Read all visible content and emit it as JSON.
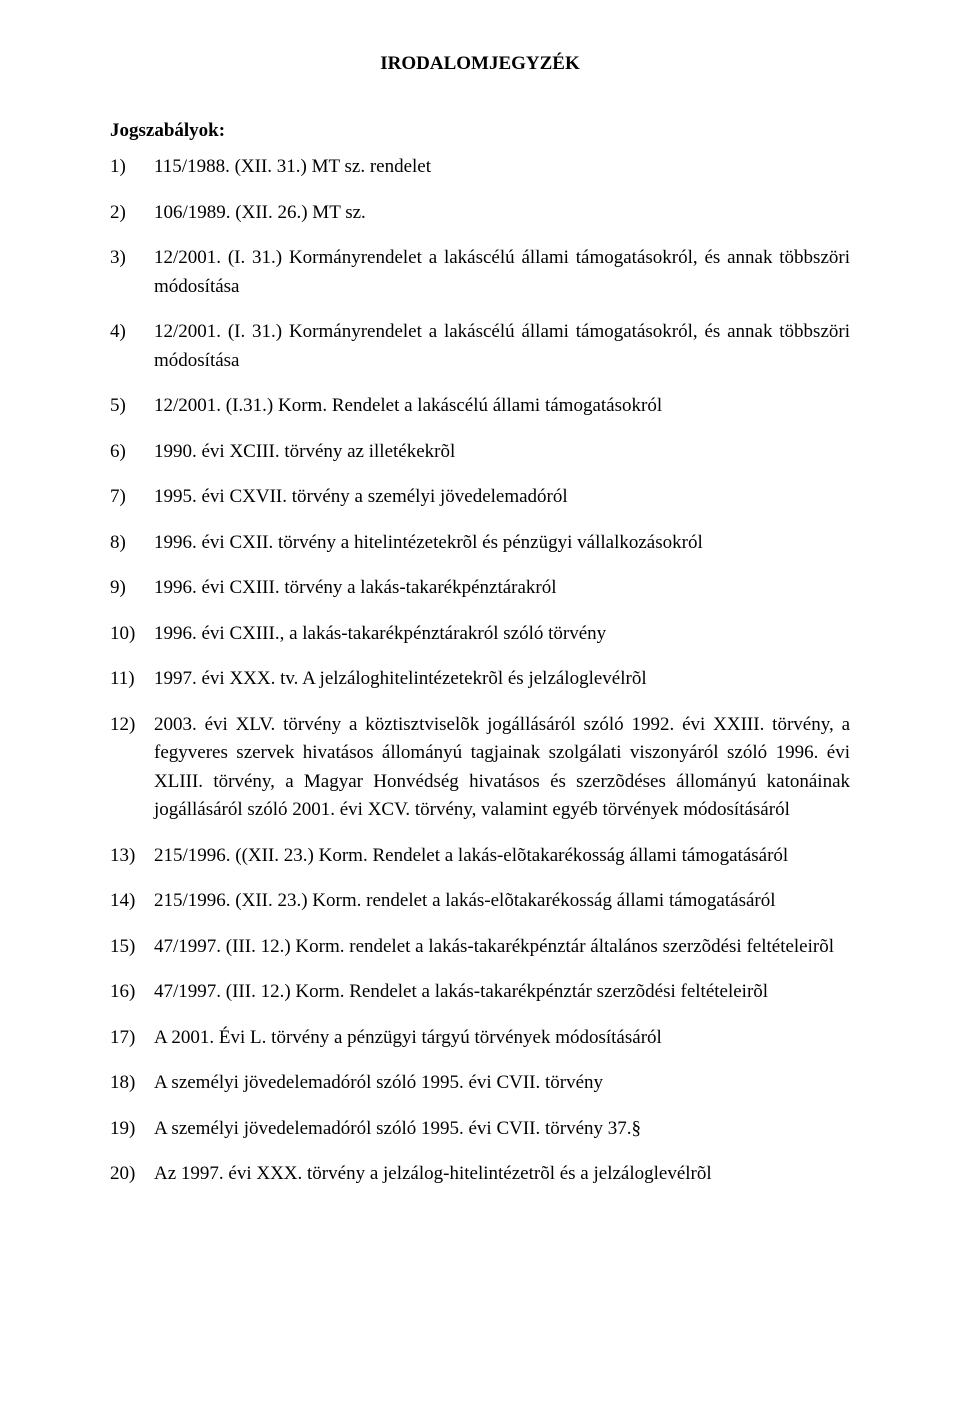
{
  "title": "IRODALOMJEGYZÉK",
  "section_label": "Jogszabályok:",
  "items": [
    {
      "num": "1)",
      "text": "115/1988. (XII. 31.) MT sz. rendelet"
    },
    {
      "num": "2)",
      "text": "106/1989. (XII. 26.) MT sz."
    },
    {
      "num": "3)",
      "text": "12/2001. (I. 31.) Kormányrendelet a lakáscélú állami támogatásokról, és annak többszöri módosítása"
    },
    {
      "num": "4)",
      "text": "12/2001. (I. 31.) Kormányrendelet a lakáscélú állami támogatásokról, és annak többszöri módosítása"
    },
    {
      "num": "5)",
      "text": "12/2001. (I.31.) Korm. Rendelet a lakáscélú állami támogatásokról"
    },
    {
      "num": "6)",
      "text": "1990. évi XCIII. törvény az illetékekrõl"
    },
    {
      "num": "7)",
      "text": "1995. évi CXVII. törvény a személyi jövedelemadóról"
    },
    {
      "num": "8)",
      "text": "1996. évi CXII. törvény a hitelintézetekrõl és pénzügyi vállalkozásokról"
    },
    {
      "num": "9)",
      "text": "1996. évi CXIII. törvény a lakás-takarékpénztárakról"
    },
    {
      "num": "10)",
      "text": "1996. évi CXIII., a lakás-takarékpénztárakról szóló törvény"
    },
    {
      "num": "11)",
      "text": "1997. évi XXX. tv. A jelzáloghitelintézetekrõl és jelzáloglevélrõl"
    },
    {
      "num": "12)",
      "text": "2003. évi XLV. törvény a köztisztviselõk jogállásáról szóló 1992. évi XXIII. törvény, a fegyveres szervek hivatásos állományú tagjainak szolgálati viszonyáról szóló 1996. évi XLIII. törvény, a Magyar Honvédség hivatásos és szerzõdéses állományú katonáinak jogállásáról szóló 2001. évi XCV. törvény, valamint egyéb törvények módosításáról"
    },
    {
      "num": "13)",
      "text": "215/1996. ((XII. 23.) Korm. Rendelet a lakás-elõtakarékosság állami támogatásáról"
    },
    {
      "num": "14)",
      "text": "215/1996. (XII. 23.) Korm. rendelet a lakás-elõtakarékosság állami támogatásáról"
    },
    {
      "num": "15)",
      "text": "47/1997. (III. 12.) Korm. rendelet a lakás-takarékpénztár általános szerzõdési feltételeirõl"
    },
    {
      "num": "16)",
      "text": "47/1997. (III. 12.) Korm. Rendelet a lakás-takarékpénztár szerzõdési feltételeirõl"
    },
    {
      "num": "17)",
      "text": "A 2001. Évi L. törvény a pénzügyi tárgyú törvények módosításáról"
    },
    {
      "num": "18)",
      "text": "A személyi jövedelemadóról szóló 1995. évi CVII. törvény"
    },
    {
      "num": "19)",
      "text": "A személyi jövedelemadóról szóló 1995. évi CVII. törvény 37.§"
    },
    {
      "num": "20)",
      "text": "Az 1997. évi XXX. törvény a jelzálog-hitelintézetrõl és a jelzáloglevélrõl"
    }
  ]
}
